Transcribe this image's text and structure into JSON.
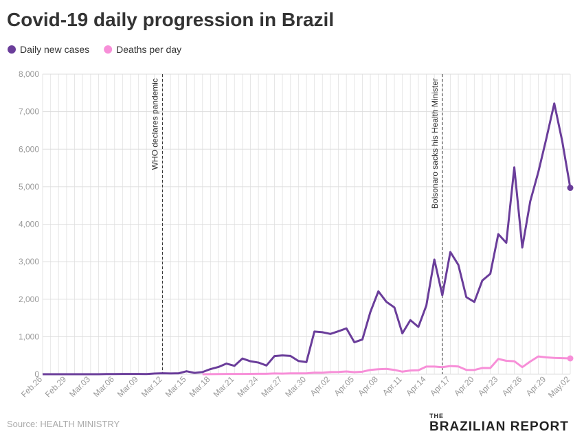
{
  "chart_data": {
    "type": "line",
    "title": "Covid-19 daily progression in Brazil",
    "source": "Source: HEALTH MINISTRY",
    "brand": {
      "top": "THE",
      "main": "BRAZILIAN REPORT"
    },
    "categories": [
      "Feb.26",
      null,
      null,
      "Feb.29",
      null,
      null,
      "Mar.03",
      null,
      null,
      "Mar.06",
      null,
      null,
      "Mar.09",
      null,
      null,
      "Mar.12",
      null,
      null,
      "Mar.15",
      null,
      null,
      "Mar.18",
      null,
      null,
      "Mar.21",
      null,
      null,
      "Mar.24",
      null,
      null,
      "Mar.27",
      null,
      null,
      "Mar.30",
      null,
      null,
      "Apr.02",
      null,
      null,
      "Apr.05",
      null,
      null,
      "Apr.08",
      null,
      null,
      "Apr.11",
      null,
      null,
      "Apr.14",
      null,
      null,
      "Apr.17",
      null,
      null,
      "Apr.20",
      null,
      null,
      "Apr.23",
      null,
      null,
      "Apr.26",
      null,
      null,
      "Apr.29",
      null,
      null,
      "May.02"
    ],
    "series": [
      {
        "name": "Daily new cases",
        "color": "#6a3d9a",
        "values": [
          1,
          0,
          0,
          1,
          0,
          0,
          0,
          1,
          5,
          5,
          6,
          6,
          6,
          4,
          18,
          25,
          21,
          23,
          79,
          34,
          57,
          137,
          193,
          283,
          224,
          418,
          345,
          310,
          232,
          482,
          502,
          487,
          352,
          323,
          1138,
          1119,
          1074,
          1146,
          1222,
          852,
          926,
          1661,
          2210,
          1930,
          1781,
          1089,
          1442,
          1261,
          1832,
          3058,
          2105,
          3257,
          2917,
          2055,
          1927,
          2498,
          2678,
          3735,
          3503,
          5514,
          3379,
          4613,
          5385,
          6276,
          7218,
          6209,
          4970
        ]
      },
      {
        "name": "Deaths per day",
        "color": "#f78fd8",
        "values": [
          null,
          null,
          null,
          null,
          null,
          null,
          null,
          null,
          null,
          null,
          null,
          null,
          null,
          null,
          null,
          null,
          null,
          null,
          null,
          null,
          1,
          3,
          4,
          7,
          7,
          7,
          9,
          12,
          11,
          20,
          15,
          22,
          22,
          23,
          42,
          40,
          58,
          60,
          73,
          54,
          67,
          114,
          133,
          141,
          115,
          68,
          99,
          105,
          204,
          204,
          188,
          217,
          206,
          115,
          113,
          166,
          165,
          407,
          357,
          346,
          189,
          338,
          474,
          449,
          435,
          428,
          421
        ]
      }
    ],
    "annotations": [
      {
        "label": "WHO declares pandemic",
        "index": 15
      },
      {
        "label": "Bolsonaro sacks his Health Minister",
        "index": 50
      }
    ],
    "ylim": [
      0,
      8000
    ],
    "yticks": [
      0,
      {
        "value": 1000,
        "label": "1,000"
      },
      {
        "value": 2000,
        "label": "2,000"
      },
      {
        "value": 3000,
        "label": "3,000"
      },
      {
        "value": 4000,
        "label": "4,000"
      },
      {
        "value": 5000,
        "label": "5,000"
      },
      {
        "value": 6000,
        "label": "6,000"
      },
      {
        "value": 7000,
        "label": "7,000"
      },
      {
        "value": 8000,
        "label": "8,000"
      }
    ],
    "grid": true
  }
}
